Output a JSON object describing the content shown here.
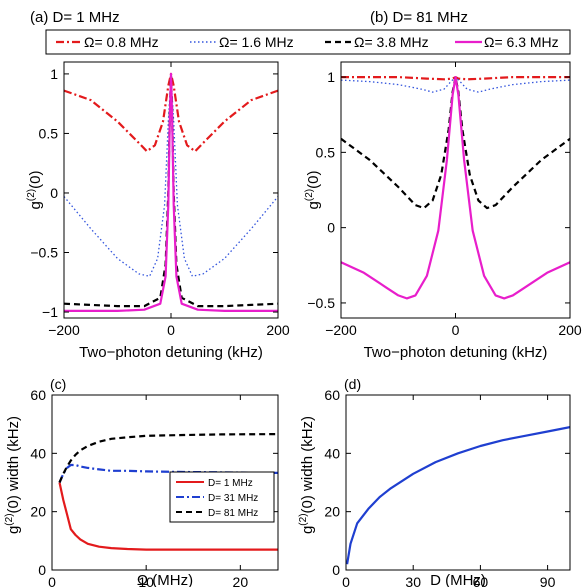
{
  "legend": {
    "entries": [
      {
        "label": "Ω= 0.8 MHz",
        "color": "#e31a1c",
        "dash": "dashdot"
      },
      {
        "label": "Ω= 1.6 MHz",
        "color": "#3355dd",
        "dash": "dotted"
      },
      {
        "label": "Ω= 3.8 MHz",
        "color": "#000000",
        "dash": "dashed"
      },
      {
        "label": "Ω= 6.3 MHz",
        "color": "#e81ecb",
        "dash": "solid"
      }
    ]
  },
  "chart_data": [
    {
      "panel": "a",
      "type": "line",
      "title": "(a) D= 1 MHz",
      "xlabel": "Two−photon detuning (kHz)",
      "ylabel": "g(2)(0)",
      "xlim": [
        -200,
        200
      ],
      "ylim": [
        -1.05,
        1.1
      ],
      "xticks": [
        -200,
        0,
        200
      ],
      "yticks": [
        -1,
        -0.5,
        0,
        0.5,
        1
      ],
      "ytick_labels": [
        "−1",
        "−0.5",
        "0",
        "0.5",
        "1"
      ],
      "xtick_labels": [
        "−200",
        "0",
        "200"
      ],
      "series": [
        {
          "name": "Ω= 0.8 MHz",
          "x": [
            -200,
            -150,
            -100,
            -60,
            -45,
            -30,
            -15,
            -5,
            0,
            5,
            15,
            30,
            45,
            60,
            100,
            150,
            200
          ],
          "y": [
            0.86,
            0.78,
            0.6,
            0.42,
            0.35,
            0.4,
            0.6,
            0.9,
            1.0,
            0.9,
            0.6,
            0.4,
            0.35,
            0.42,
            0.6,
            0.78,
            0.86
          ]
        },
        {
          "name": "Ω= 1.6 MHz",
          "x": [
            -200,
            -150,
            -100,
            -60,
            -40,
            -25,
            -12,
            -5,
            0,
            5,
            12,
            25,
            40,
            60,
            100,
            150,
            200
          ],
          "y": [
            -0.03,
            -0.3,
            -0.55,
            -0.68,
            -0.7,
            -0.55,
            -0.1,
            0.6,
            0.97,
            0.6,
            -0.1,
            -0.55,
            -0.7,
            -0.68,
            -0.55,
            -0.3,
            -0.03
          ]
        },
        {
          "name": "Ω= 3.8 MHz",
          "x": [
            -200,
            -150,
            -100,
            -50,
            -20,
            -10,
            -5,
            -2,
            0,
            2,
            5,
            10,
            20,
            50,
            100,
            150,
            200
          ],
          "y": [
            -0.93,
            -0.94,
            -0.95,
            -0.95,
            -0.88,
            -0.6,
            0.0,
            0.7,
            0.98,
            0.7,
            0.0,
            -0.6,
            -0.88,
            -0.95,
            -0.95,
            -0.94,
            -0.93
          ]
        },
        {
          "name": "Ω= 6.3 MHz",
          "x": [
            -200,
            -150,
            -100,
            -50,
            -20,
            -10,
            -5,
            -2,
            0,
            2,
            5,
            10,
            20,
            50,
            100,
            150,
            200
          ],
          "y": [
            -0.99,
            -0.99,
            -0.99,
            -0.98,
            -0.93,
            -0.7,
            -0.1,
            0.65,
            1.0,
            0.65,
            -0.1,
            -0.7,
            -0.93,
            -0.98,
            -0.99,
            -0.99,
            -0.99
          ]
        }
      ]
    },
    {
      "panel": "b",
      "type": "line",
      "title": "(b) D= 81 MHz",
      "xlabel": "Two−photon detuning (kHz)",
      "ylabel": "g(2)(0)",
      "xlim": [
        -200,
        200
      ],
      "ylim": [
        -0.6,
        1.1
      ],
      "xticks": [
        -200,
        0,
        200
      ],
      "yticks": [
        -0.5,
        0,
        0.5,
        1
      ],
      "ytick_labels": [
        "−0.5",
        "0",
        "0.5",
        "1"
      ],
      "xtick_labels": [
        "−200",
        "0",
        "200"
      ],
      "series": [
        {
          "name": "Ω= 0.8 MHz",
          "x": [
            -200,
            -100,
            -50,
            -20,
            -5,
            0,
            5,
            20,
            50,
            100,
            200
          ],
          "y": [
            1.0,
            1.0,
            0.99,
            0.985,
            0.99,
            1.0,
            0.99,
            0.985,
            0.99,
            1.0,
            1.0
          ]
        },
        {
          "name": "Ω= 1.6 MHz",
          "x": [
            -200,
            -150,
            -100,
            -60,
            -40,
            -20,
            -8,
            0,
            8,
            20,
            40,
            60,
            100,
            150,
            200
          ],
          "y": [
            0.98,
            0.97,
            0.95,
            0.92,
            0.9,
            0.92,
            0.97,
            1.0,
            0.97,
            0.92,
            0.9,
            0.92,
            0.95,
            0.97,
            0.98
          ]
        },
        {
          "name": "Ω= 3.8 MHz",
          "x": [
            -200,
            -150,
            -100,
            -70,
            -55,
            -40,
            -25,
            -12,
            -5,
            0,
            5,
            12,
            25,
            40,
            55,
            70,
            100,
            150,
            200
          ],
          "y": [
            0.59,
            0.45,
            0.27,
            0.15,
            0.13,
            0.18,
            0.35,
            0.65,
            0.9,
            1.0,
            0.9,
            0.65,
            0.35,
            0.18,
            0.13,
            0.15,
            0.27,
            0.45,
            0.59
          ]
        },
        {
          "name": "Ω= 6.3 MHz",
          "x": [
            -200,
            -160,
            -120,
            -100,
            -85,
            -70,
            -50,
            -30,
            -15,
            -5,
            0,
            5,
            15,
            30,
            50,
            70,
            85,
            100,
            120,
            160,
            200
          ],
          "y": [
            -0.23,
            -0.3,
            -0.4,
            -0.45,
            -0.47,
            -0.45,
            -0.32,
            -0.02,
            0.45,
            0.88,
            1.0,
            0.88,
            0.45,
            -0.02,
            -0.32,
            -0.45,
            -0.47,
            -0.45,
            -0.4,
            -0.3,
            -0.23
          ]
        }
      ]
    },
    {
      "panel": "c",
      "type": "line",
      "title": "(c)",
      "xlabel": "Ω (MHz)",
      "ylabel": "g(2)(0) width (kHz)",
      "xlim": [
        0,
        24
      ],
      "ylim": [
        0,
        60
      ],
      "xticks": [
        0,
        10,
        20
      ],
      "yticks": [
        0,
        20,
        40,
        60
      ],
      "xtick_labels": [
        "0",
        "10",
        "20"
      ],
      "ytick_labels": [
        "0",
        "20",
        "40",
        "60"
      ],
      "legend_position": "lower-right",
      "series": [
        {
          "name": "D= 1 MHz",
          "color": "#e31a1c",
          "dash": "solid",
          "x": [
            0.8,
            1.2,
            1.6,
            2.0,
            2.5,
            3.0,
            3.8,
            5,
            6.3,
            8,
            10,
            14,
            18,
            24
          ],
          "y": [
            30,
            24,
            19,
            14,
            12,
            10.5,
            9,
            8,
            7.5,
            7.2,
            7,
            7,
            7,
            7
          ]
        },
        {
          "name": "D= 31 MHz",
          "color": "#1f3fd0",
          "dash": "dashdot",
          "x": [
            0.8,
            1.2,
            1.6,
            2.0,
            2.5,
            3.0,
            3.8,
            5,
            6.3,
            8,
            10,
            14,
            18,
            24
          ],
          "y": [
            30,
            33,
            35,
            36,
            36,
            35.5,
            35,
            34.5,
            34,
            34,
            33.8,
            33.6,
            33.5,
            33.3
          ]
        },
        {
          "name": "D= 81 MHz",
          "color": "#000000",
          "dash": "dashed",
          "x": [
            0.8,
            1.2,
            1.6,
            2.0,
            2.5,
            3.0,
            3.8,
            5,
            6.3,
            8,
            10,
            14,
            18,
            24
          ],
          "y": [
            30,
            33,
            35.5,
            37.5,
            39.5,
            41,
            42.5,
            44,
            45,
            45.5,
            46,
            46.3,
            46.5,
            46.6
          ]
        }
      ]
    },
    {
      "panel": "d",
      "type": "line",
      "title": "(d)",
      "xlabel": "D (MHz)",
      "ylabel": "g(2)(0) width (kHz)",
      "xlim": [
        0,
        100
      ],
      "ylim": [
        0,
        60
      ],
      "xticks": [
        0,
        30,
        60,
        90
      ],
      "yticks": [
        0,
        20,
        40,
        60
      ],
      "xtick_labels": [
        "0",
        "30",
        "60",
        "90"
      ],
      "ytick_labels": [
        "0",
        "20",
        "40",
        "60"
      ],
      "series": [
        {
          "color": "#1f3fd0",
          "dash": "solid",
          "x": [
            0.5,
            2,
            5,
            10,
            15,
            20,
            30,
            40,
            50,
            60,
            70,
            80,
            90,
            100
          ],
          "y": [
            2,
            9,
            16,
            21,
            25,
            28,
            33,
            37,
            40,
            42.5,
            44.5,
            46,
            47.5,
            49
          ]
        }
      ]
    }
  ]
}
